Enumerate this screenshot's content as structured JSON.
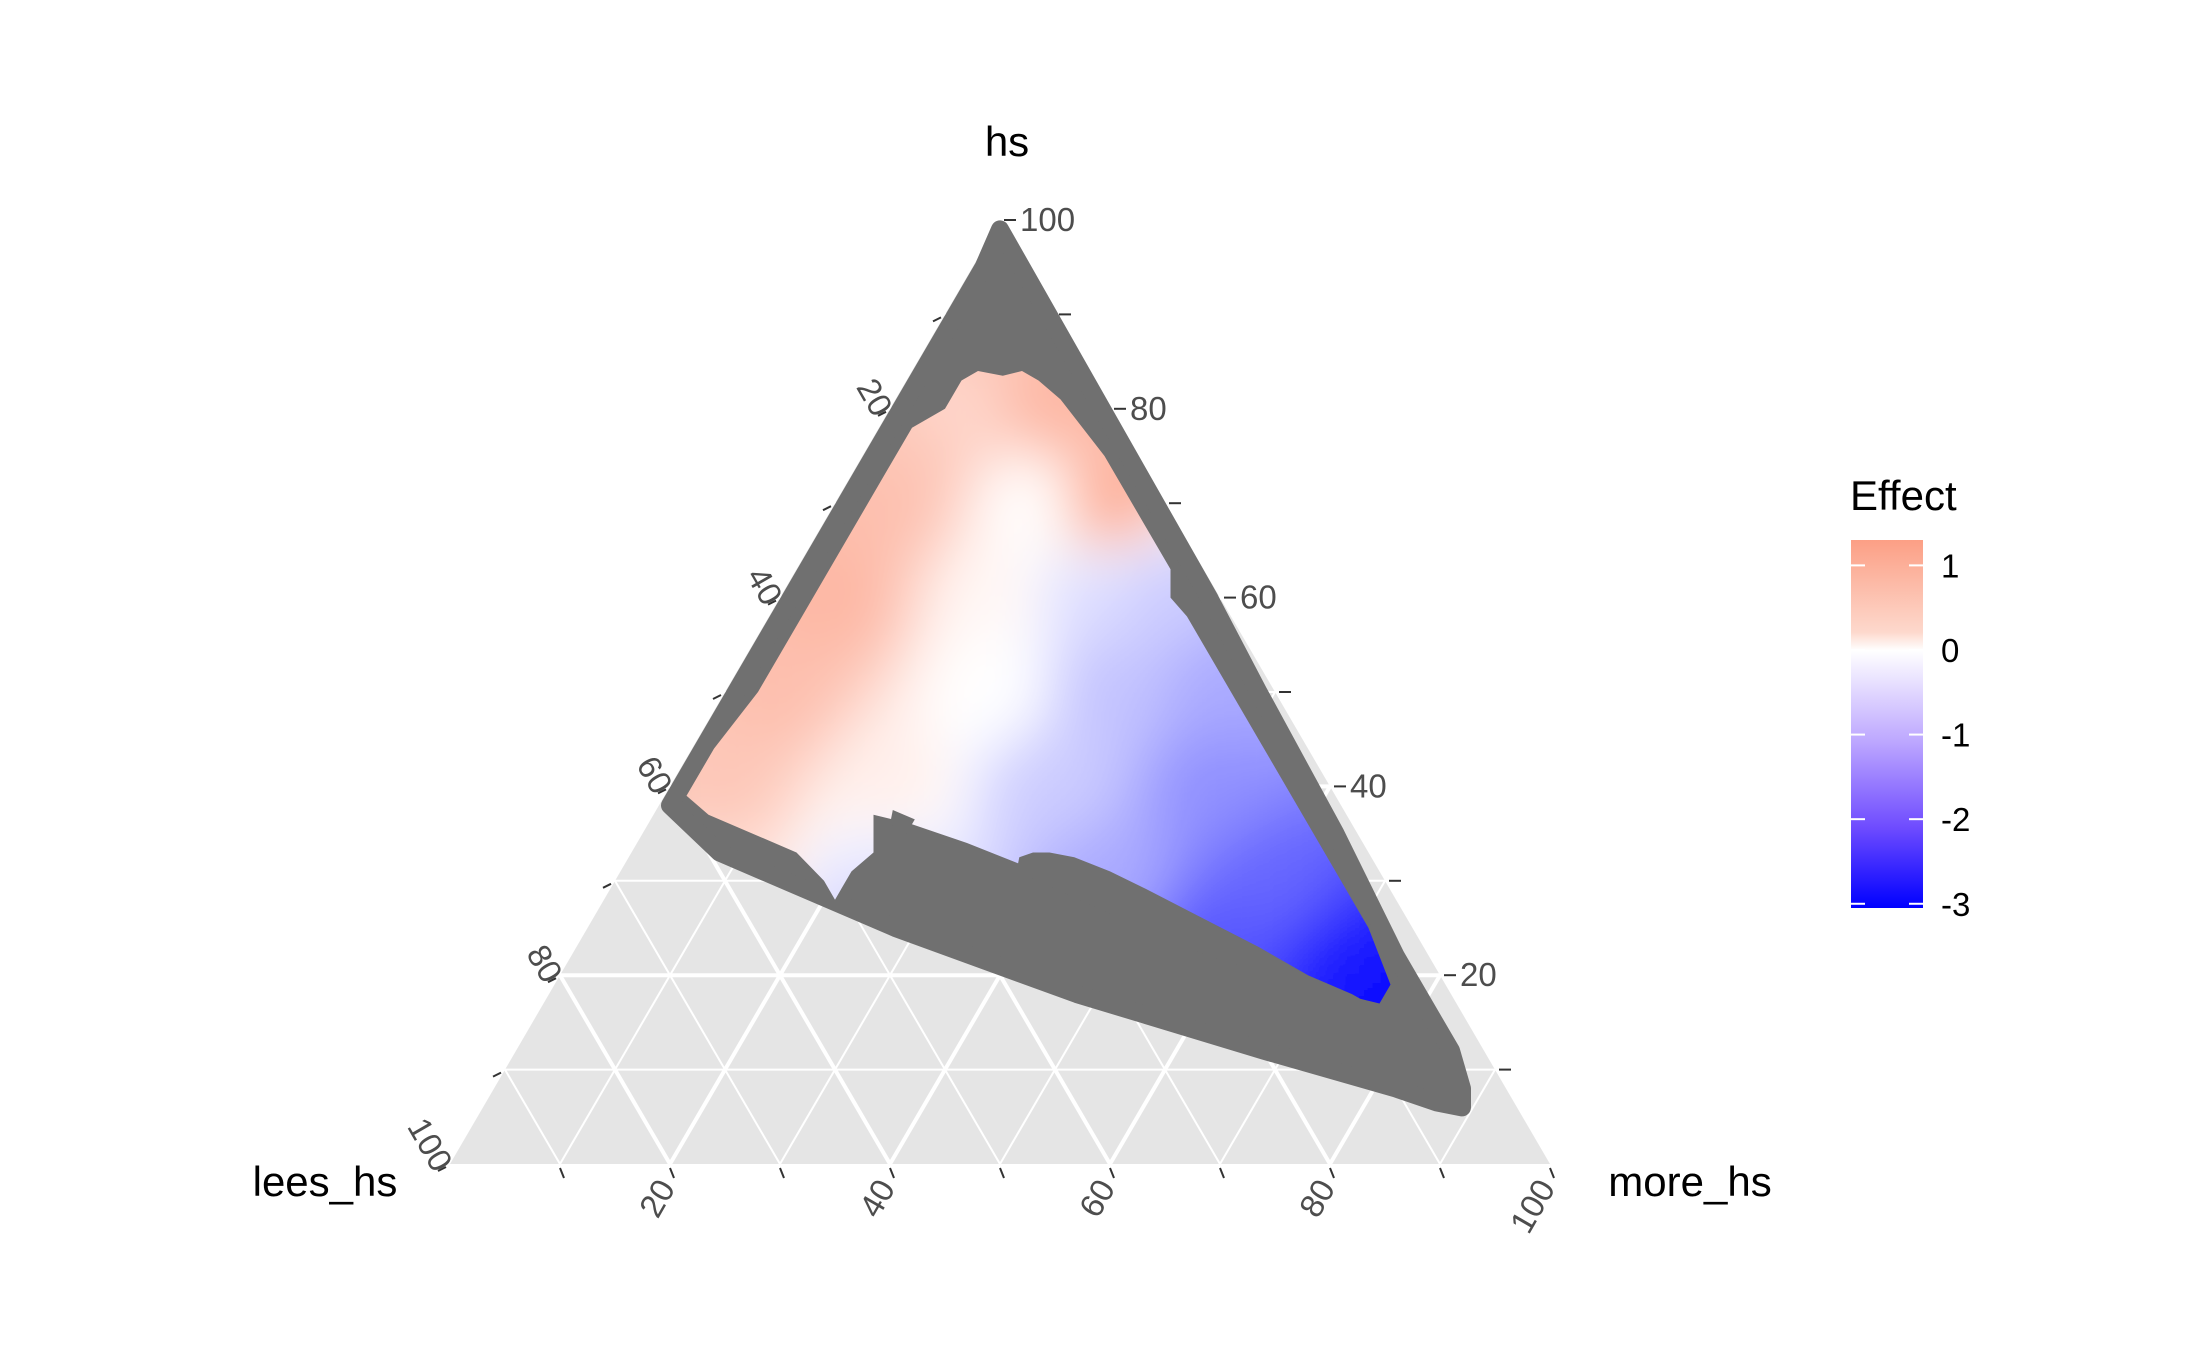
{
  "chart_data": {
    "type": "heatmap",
    "subtype": "ternary",
    "title": "",
    "axes": {
      "top": {
        "label": "hs",
        "ticks": [
          "100",
          "80",
          "60",
          "40",
          "20"
        ]
      },
      "left": {
        "label": "lees_hs",
        "ticks": [
          "20",
          "40",
          "60",
          "80",
          "100"
        ]
      },
      "right": {
        "label": "more_hs",
        "ticks": [
          "20",
          "40",
          "60",
          "80",
          "100"
        ]
      }
    },
    "range": [
      0,
      100
    ],
    "grid": true,
    "legend": {
      "title": "Effect",
      "placement": "right",
      "ticks": [
        "1",
        "0",
        "-1",
        "-2",
        "-3"
      ],
      "tick_values": [
        1,
        0,
        -1,
        -2,
        -3
      ],
      "min": -3.05,
      "max": 1.3,
      "low_color": "#0000ff",
      "mid_color": "#ffffff",
      "high_color": "#fc9f85"
    },
    "masked_region_color": "#707070",
    "panel_color": "#e5e5e5",
    "grid_color": "#ffffff",
    "surface_points": [
      {
        "hs": 88,
        "lees_hs": 10,
        "more_hs": 2,
        "effect": 0.7
      },
      {
        "hs": 80,
        "lees_hs": 14,
        "more_hs": 6,
        "effect": 0.5
      },
      {
        "hs": 80,
        "lees_hs": 5,
        "more_hs": 15,
        "effect": 0.9
      },
      {
        "hs": 75,
        "lees_hs": 20,
        "more_hs": 5,
        "effect": 0.7
      },
      {
        "hs": 70,
        "lees_hs": 25,
        "more_hs": 5,
        "effect": 0.8
      },
      {
        "hs": 70,
        "lees_hs": 12,
        "more_hs": 18,
        "effect": 0.0
      },
      {
        "hs": 70,
        "lees_hs": 5,
        "more_hs": 25,
        "effect": 1.0
      },
      {
        "hs": 60,
        "lees_hs": 35,
        "more_hs": 5,
        "effect": 0.9
      },
      {
        "hs": 60,
        "lees_hs": 20,
        "more_hs": 20,
        "effect": 0.1
      },
      {
        "hs": 60,
        "lees_hs": 12,
        "more_hs": 28,
        "effect": -0.4
      },
      {
        "hs": 60,
        "lees_hs": 5,
        "more_hs": 35,
        "effect": -0.6
      },
      {
        "hs": 50,
        "lees_hs": 45,
        "more_hs": 5,
        "effect": 0.8
      },
      {
        "hs": 50,
        "lees_hs": 25,
        "more_hs": 25,
        "effect": 0.0
      },
      {
        "hs": 50,
        "lees_hs": 15,
        "more_hs": 35,
        "effect": -0.7
      },
      {
        "hs": 50,
        "lees_hs": 5,
        "more_hs": 45,
        "effect": -1.0
      },
      {
        "hs": 40,
        "lees_hs": 55,
        "more_hs": 5,
        "effect": 0.7
      },
      {
        "hs": 40,
        "lees_hs": 40,
        "more_hs": 20,
        "effect": 0.2
      },
      {
        "hs": 40,
        "lees_hs": 25,
        "more_hs": 35,
        "effect": -0.6
      },
      {
        "hs": 40,
        "lees_hs": 10,
        "more_hs": 50,
        "effect": -1.3
      },
      {
        "hs": 30,
        "lees_hs": 60,
        "more_hs": 10,
        "effect": 0.4
      },
      {
        "hs": 30,
        "lees_hs": 45,
        "more_hs": 25,
        "effect": -0.3
      },
      {
        "hs": 30,
        "lees_hs": 25,
        "more_hs": 45,
        "effect": -1.0
      },
      {
        "hs": 30,
        "lees_hs": 10,
        "more_hs": 60,
        "effect": -1.8
      },
      {
        "hs": 25,
        "lees_hs": 50,
        "more_hs": 25,
        "effect": -0.5
      },
      {
        "hs": 22,
        "lees_hs": 20,
        "more_hs": 58,
        "effect": -2.0
      },
      {
        "hs": 20,
        "lees_hs": 8,
        "more_hs": 72,
        "effect": -2.7
      },
      {
        "hs": 15,
        "lees_hs": 6,
        "more_hs": 79,
        "effect": -3.0
      }
    ]
  }
}
